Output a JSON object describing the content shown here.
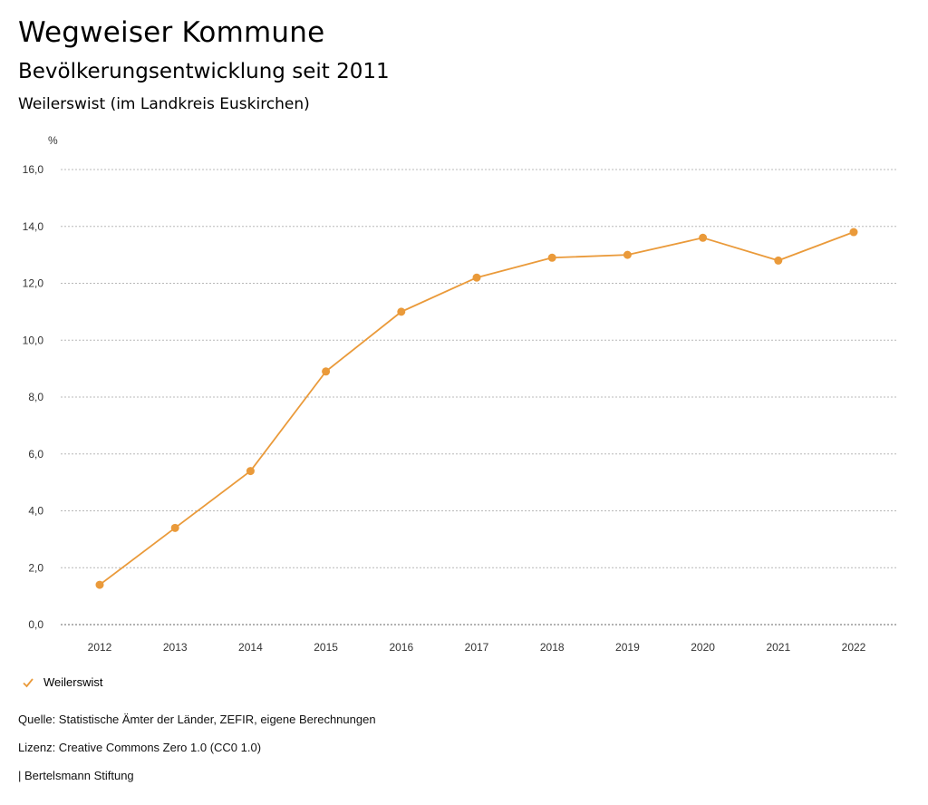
{
  "header": {
    "title": "Wegweiser Kommune",
    "subtitle": "Bevölkerungsentwicklung seit 2011",
    "region": "Weilerswist (im Landkreis Euskirchen)"
  },
  "chart_data": {
    "type": "line",
    "x": [
      "2012",
      "2013",
      "2014",
      "2015",
      "2016",
      "2017",
      "2018",
      "2019",
      "2020",
      "2021",
      "2022"
    ],
    "series": [
      {
        "name": "Weilerswist",
        "color": "#ea9a3a",
        "values": [
          1.4,
          3.4,
          5.4,
          8.9,
          11.0,
          12.2,
          12.9,
          13.0,
          13.6,
          12.8,
          13.8
        ]
      }
    ],
    "ylabel": "%",
    "ylim": [
      0,
      16
    ],
    "yticks": [
      "0,0",
      "2,0",
      "4,0",
      "6,0",
      "8,0",
      "10,0",
      "12,0",
      "14,0",
      "16,0"
    ],
    "grid": true,
    "legend": "bottom-left"
  },
  "footer": {
    "source": "Quelle: Statistische Ämter der Länder, ZEFIR, eigene Berechnungen",
    "license": "Lizenz: Creative Commons Zero 1.0 (CC0 1.0)",
    "publisher": "| Bertelsmann Stiftung"
  }
}
